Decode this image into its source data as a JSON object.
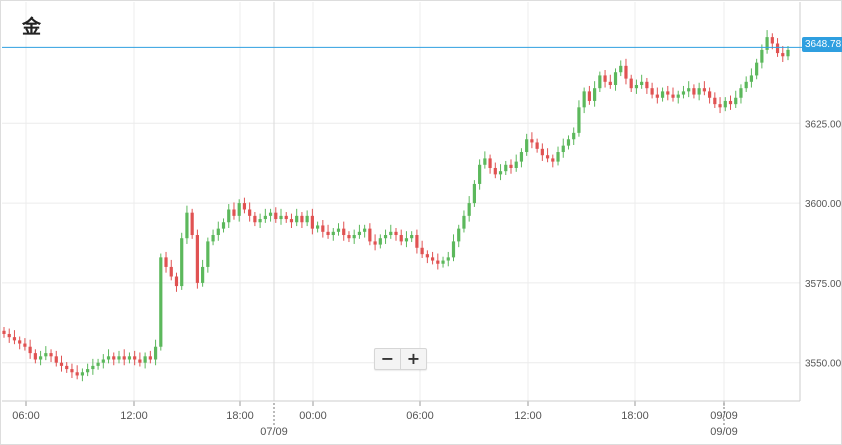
{
  "title": "金",
  "current_price": {
    "label": "3648.78",
    "value": 3648.78,
    "color": "#2f9fe0"
  },
  "zoom": {
    "minus_label": "−",
    "plus_label": "+"
  },
  "colors": {
    "up": "#5cb85c",
    "down": "#e05252",
    "grid": "#ececec",
    "axis_text": "#555555"
  },
  "chart_data": {
    "type": "candlestick",
    "title": "金",
    "y_ticks": [
      "3550.00",
      "3575.00",
      "3600.00",
      "3625.00"
    ],
    "ylim": [
      3538,
      3663
    ],
    "x_tick_labels": [
      "06:00",
      "12:00",
      "18:00",
      "00:00",
      "06:00",
      "12:00",
      "18:00",
      "09/09"
    ],
    "date_labels": [
      "07/09",
      "09/09"
    ],
    "grid": true,
    "candles_close_path": [
      3559,
      3558,
      3557,
      3556,
      3555,
      3553,
      3551,
      3552,
      3553,
      3552,
      3550,
      3549,
      3548,
      3547,
      3546,
      3547,
      3548,
      3549,
      3550,
      3551,
      3552,
      3551,
      3552,
      3551,
      3552,
      3551,
      3550,
      3552,
      3551,
      3555,
      3583,
      3580,
      3577,
      3574,
      3589,
      3597,
      3590,
      3575,
      3580,
      3588,
      3590,
      3592,
      3594,
      3598,
      3596,
      3600,
      3598,
      3596,
      3594,
      3595,
      3596,
      3597,
      3595,
      3596,
      3595,
      3594,
      3596,
      3594,
      3596,
      3592,
      3593,
      3591,
      3590,
      3591,
      3592,
      3590,
      3589,
      3590,
      3591,
      3592,
      3588,
      3587,
      3589,
      3590,
      3591,
      3590,
      3588,
      3589,
      3590,
      3586,
      3584,
      3583,
      3582,
      3581,
      3582,
      3583,
      3588,
      3592,
      3596,
      3600,
      3606,
      3612,
      3614,
      3611,
      3609,
      3610,
      3612,
      3611,
      3613,
      3616,
      3620,
      3619,
      3617,
      3615,
      3614,
      3613,
      3616,
      3618,
      3620,
      3622,
      3630,
      3635,
      3632,
      3636,
      3640,
      3638,
      3637,
      3641,
      3643,
      3639,
      3636,
      3637,
      3638,
      3636,
      3634,
      3633,
      3635,
      3634,
      3633,
      3634,
      3635,
      3636,
      3634,
      3636,
      3635,
      3633,
      3631,
      3630,
      3632,
      3631,
      3633,
      3636,
      3638,
      3640,
      3644,
      3648,
      3652,
      3650,
      3647,
      3646,
      3648
    ]
  }
}
